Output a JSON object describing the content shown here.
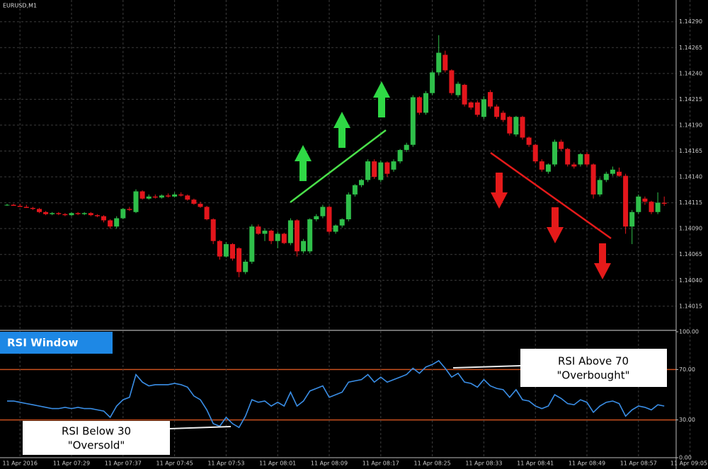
{
  "chart_data": [
    {
      "type": "candlestick",
      "title": "EURUSD,M1",
      "up_color": "#2fbf4a",
      "down_color": "#e3161c",
      "grid": true,
      "ylim": [
        1.13993,
        1.14311
      ],
      "yticks": [
        {
          "value": 1.1429,
          "label": "1.14290"
        },
        {
          "value": 1.14265,
          "label": "1.14265"
        },
        {
          "value": 1.1424,
          "label": "1.14240"
        },
        {
          "value": 1.14215,
          "label": "1.14215"
        },
        {
          "value": 1.1419,
          "label": "1.14190"
        },
        {
          "value": 1.14165,
          "label": "1.14165"
        },
        {
          "value": 1.1414,
          "label": "1.14140"
        },
        {
          "value": 1.14115,
          "label": "1.14115"
        },
        {
          "value": 1.1409,
          "label": "1.14090"
        },
        {
          "value": 1.14065,
          "label": "1.14065"
        },
        {
          "value": 1.1404,
          "label": "1.14040"
        },
        {
          "value": 1.14015,
          "label": "1.14015"
        }
      ],
      "ohlc": [
        [
          1.14113,
          1.14114,
          1.14112,
          1.14113
        ],
        [
          1.14113,
          1.14114,
          1.14112,
          1.14112
        ],
        [
          1.14112,
          1.14114,
          1.14111,
          1.14111
        ],
        [
          1.14111,
          1.14113,
          1.1411,
          1.1411
        ],
        [
          1.1411,
          1.14111,
          1.14108,
          1.14109
        ],
        [
          1.14109,
          1.1411,
          1.14105,
          1.14106
        ],
        [
          1.14106,
          1.14107,
          1.14103,
          1.14104
        ],
        [
          1.14104,
          1.14106,
          1.14103,
          1.14105
        ],
        [
          1.14105,
          1.14106,
          1.14103,
          1.14104
        ],
        [
          1.14104,
          1.14105,
          1.14102,
          1.14103
        ],
        [
          1.14103,
          1.14106,
          1.14102,
          1.14105
        ],
        [
          1.14105,
          1.14106,
          1.14103,
          1.14104
        ],
        [
          1.14104,
          1.14106,
          1.14103,
          1.14105
        ],
        [
          1.14105,
          1.14106,
          1.14102,
          1.14103
        ],
        [
          1.14103,
          1.14104,
          1.14101,
          1.14102
        ],
        [
          1.14102,
          1.14103,
          1.14096,
          1.14098
        ],
        [
          1.14098,
          1.14099,
          1.1409,
          1.14092
        ],
        [
          1.14092,
          1.14102,
          1.1409,
          1.141
        ],
        [
          1.141,
          1.1411,
          1.14099,
          1.14109
        ],
        [
          1.14109,
          1.14111,
          1.14107,
          1.14108
        ],
        [
          1.14106,
          1.14128,
          1.14105,
          1.14126
        ],
        [
          1.14126,
          1.14127,
          1.14118,
          1.14119
        ],
        [
          1.14119,
          1.14123,
          1.14118,
          1.14121
        ],
        [
          1.14121,
          1.14123,
          1.14119,
          1.1412
        ],
        [
          1.1412,
          1.14123,
          1.14119,
          1.14122
        ],
        [
          1.14122,
          1.14124,
          1.1412,
          1.14121
        ],
        [
          1.14121,
          1.14125,
          1.1412,
          1.14123
        ],
        [
          1.14123,
          1.14125,
          1.14121,
          1.14122
        ],
        [
          1.14122,
          1.14123,
          1.14117,
          1.14118
        ],
        [
          1.14118,
          1.14119,
          1.14113,
          1.14114
        ],
        [
          1.14114,
          1.14116,
          1.1411,
          1.14111
        ],
        [
          1.14111,
          1.14112,
          1.14098,
          1.14099
        ],
        [
          1.14099,
          1.141,
          1.14075,
          1.14078
        ],
        [
          1.14078,
          1.14079,
          1.1406,
          1.14063
        ],
        [
          1.14063,
          1.14077,
          1.14062,
          1.14075
        ],
        [
          1.14075,
          1.14076,
          1.14059,
          1.14061
        ],
        [
          1.14071,
          1.14072,
          1.14043,
          1.14048
        ],
        [
          1.14048,
          1.1406,
          1.14046,
          1.14058
        ],
        [
          1.14058,
          1.14094,
          1.14056,
          1.14092
        ],
        [
          1.14092,
          1.14094,
          1.14084,
          1.14085
        ],
        [
          1.14085,
          1.1409,
          1.14078,
          1.14088
        ],
        [
          1.14088,
          1.14089,
          1.14075,
          1.14078
        ],
        [
          1.14078,
          1.14087,
          1.14071,
          1.14085
        ],
        [
          1.14085,
          1.14086,
          1.14075,
          1.14076
        ],
        [
          1.14076,
          1.141,
          1.14074,
          1.14098
        ],
        [
          1.14098,
          1.14099,
          1.14063,
          1.14068
        ],
        [
          1.14068,
          1.1408,
          1.14066,
          1.14078
        ],
        [
          1.14068,
          1.141,
          1.14066,
          1.14099
        ],
        [
          1.14099,
          1.14104,
          1.14097,
          1.14102
        ],
        [
          1.14102,
          1.14113,
          1.141,
          1.14111
        ],
        [
          1.14111,
          1.14112,
          1.14085,
          1.14087
        ],
        [
          1.14087,
          1.14094,
          1.14085,
          1.14093
        ],
        [
          1.14093,
          1.141,
          1.14091,
          1.14099
        ],
        [
          1.14099,
          1.14125,
          1.14097,
          1.14123
        ],
        [
          1.14123,
          1.14133,
          1.14121,
          1.14132
        ],
        [
          1.14132,
          1.14138,
          1.1413,
          1.14137
        ],
        [
          1.14137,
          1.14157,
          1.14135,
          1.14155
        ],
        [
          1.14155,
          1.14157,
          1.14138,
          1.1414
        ],
        [
          1.14137,
          1.14156,
          1.14135,
          1.14154
        ],
        [
          1.14154,
          1.14155,
          1.1414,
          1.14143
        ],
        [
          1.14147,
          1.14157,
          1.14145,
          1.14155
        ],
        [
          1.14155,
          1.14167,
          1.14153,
          1.14166
        ],
        [
          1.14166,
          1.14173,
          1.14164,
          1.14171
        ],
        [
          1.14171,
          1.14219,
          1.14169,
          1.14217
        ],
        [
          1.14217,
          1.14218,
          1.142,
          1.14202
        ],
        [
          1.14202,
          1.14223,
          1.142,
          1.14221
        ],
        [
          1.14221,
          1.14243,
          1.14219,
          1.14241
        ],
        [
          1.14241,
          1.14277,
          1.14238,
          1.1426
        ],
        [
          1.14258,
          1.14262,
          1.14241,
          1.14243
        ],
        [
          1.14243,
          1.14244,
          1.14219,
          1.14221
        ],
        [
          1.14219,
          1.14232,
          1.14217,
          1.1423
        ],
        [
          1.14229,
          1.1423,
          1.14208,
          1.1421
        ],
        [
          1.14212,
          1.14213,
          1.14205,
          1.14207
        ],
        [
          1.14212,
          1.14214,
          1.14198,
          1.142
        ],
        [
          1.14198,
          1.14218,
          1.14196,
          1.14215
        ],
        [
          1.14222,
          1.14224,
          1.14206,
          1.14208
        ],
        [
          1.14208,
          1.1421,
          1.14196,
          1.14198
        ],
        [
          1.14202,
          1.14204,
          1.14193,
          1.14195
        ],
        [
          1.14198,
          1.14199,
          1.1418,
          1.14182
        ],
        [
          1.14181,
          1.14199,
          1.14179,
          1.14198
        ],
        [
          1.14198,
          1.14199,
          1.14176,
          1.14178
        ],
        [
          1.14178,
          1.14179,
          1.14169,
          1.14171
        ],
        [
          1.14171,
          1.14172,
          1.14153,
          1.14155
        ],
        [
          1.14155,
          1.14157,
          1.14145,
          1.14147
        ],
        [
          1.14145,
          1.14153,
          1.14143,
          1.14152
        ],
        [
          1.14152,
          1.14176,
          1.1415,
          1.14174
        ],
        [
          1.14174,
          1.14176,
          1.14165,
          1.14167
        ],
        [
          1.14167,
          1.14168,
          1.1415,
          1.14152
        ],
        [
          1.14152,
          1.14154,
          1.14148,
          1.1415
        ],
        [
          1.14152,
          1.14163,
          1.1415,
          1.14162
        ],
        [
          1.14162,
          1.14164,
          1.1415,
          1.14152
        ],
        [
          1.14152,
          1.14153,
          1.14119,
          1.14123
        ],
        [
          1.14123,
          1.14139,
          1.14121,
          1.14137
        ],
        [
          1.14137,
          1.14145,
          1.14135,
          1.14143
        ],
        [
          1.14143,
          1.1415,
          1.14141,
          1.14147
        ],
        [
          1.14145,
          1.14149,
          1.1414,
          1.14141
        ],
        [
          1.14141,
          1.14143,
          1.14085,
          1.14092
        ],
        [
          1.14092,
          1.14108,
          1.14075,
          1.14106
        ],
        [
          1.14106,
          1.14123,
          1.14104,
          1.14121
        ],
        [
          1.14119,
          1.14121,
          1.14113,
          1.14116
        ],
        [
          1.14116,
          1.14117,
          1.14104,
          1.14106
        ],
        [
          1.14106,
          1.14125,
          1.14104,
          1.14115
        ],
        [
          1.14115,
          1.14121,
          1.14112,
          1.14114
        ],
        null,
        null,
        null,
        null
      ]
    },
    {
      "type": "line",
      "title": "RSI Window",
      "color": "#3a8ee6",
      "ylim": [
        0,
        100
      ],
      "yticks": [
        {
          "value": 100,
          "label": "100.00"
        },
        {
          "value": 70,
          "label": "70.00"
        },
        {
          "value": 30,
          "label": "30.00"
        },
        {
          "value": 0,
          "label": "0.00"
        }
      ],
      "levels": [
        70,
        30
      ],
      "level_color": "#c8501e",
      "categories": [
        null,
        null,
        "11 Apr 2016",
        null,
        null,
        null,
        null,
        null,
        null,
        null,
        "11 Apr 07:29",
        null,
        null,
        null,
        null,
        null,
        null,
        null,
        "11 Apr 07:37",
        null,
        null,
        null,
        null,
        null,
        null,
        null,
        "11 Apr 07:45",
        null,
        null,
        null,
        null,
        null,
        null,
        null,
        "11 Apr 07:53",
        null,
        null,
        null,
        null,
        null,
        null,
        null,
        "11 Apr 08:01",
        null,
        null,
        null,
        null,
        null,
        null,
        null,
        "11 Apr 08:09",
        null,
        null,
        null,
        null,
        null,
        null,
        null,
        "11 Apr 08:17",
        null,
        null,
        null,
        null,
        null,
        null,
        null,
        "11 Apr 08:25",
        null,
        null,
        null,
        null,
        null,
        null,
        null,
        "11 Apr 08:33",
        null,
        null,
        null,
        null,
        null,
        null,
        null,
        "11 Apr 08:41",
        null,
        null,
        null,
        null,
        null,
        null,
        null,
        "11 Apr 08:49",
        null,
        null,
        null,
        null,
        null,
        null,
        null,
        "11 Apr 08:57",
        null,
        null,
        null,
        null,
        null,
        null,
        null,
        "11 Apr 09:05"
      ],
      "values": [
        45,
        45,
        44,
        43,
        42,
        41,
        40,
        39,
        39,
        40,
        39,
        40,
        39,
        39,
        38,
        37,
        32,
        41,
        46,
        48,
        66,
        60,
        57,
        58,
        58,
        58,
        59,
        58,
        56,
        49,
        46,
        38,
        27,
        25,
        32,
        27,
        24,
        33,
        46,
        44,
        45,
        41,
        44,
        41,
        52,
        41,
        45,
        53,
        55,
        57,
        48,
        50,
        52,
        60,
        61,
        62,
        66,
        60,
        64,
        60,
        62,
        64,
        66,
        71,
        67,
        72,
        74,
        77,
        71,
        64,
        67,
        60,
        59,
        56,
        62,
        57,
        55,
        54,
        48,
        54,
        46,
        45,
        41,
        39,
        41,
        50,
        47,
        43,
        42,
        46,
        44,
        36,
        41,
        44,
        45,
        43,
        33,
        38,
        41,
        40,
        38,
        42,
        41,
        null,
        null,
        null,
        null
      ],
      "annotations": [
        [
          "RSI Above 70",
          "\"Overbought\""
        ],
        [
          "RSI Below 30",
          "\"Oversold\""
        ]
      ]
    }
  ]
}
